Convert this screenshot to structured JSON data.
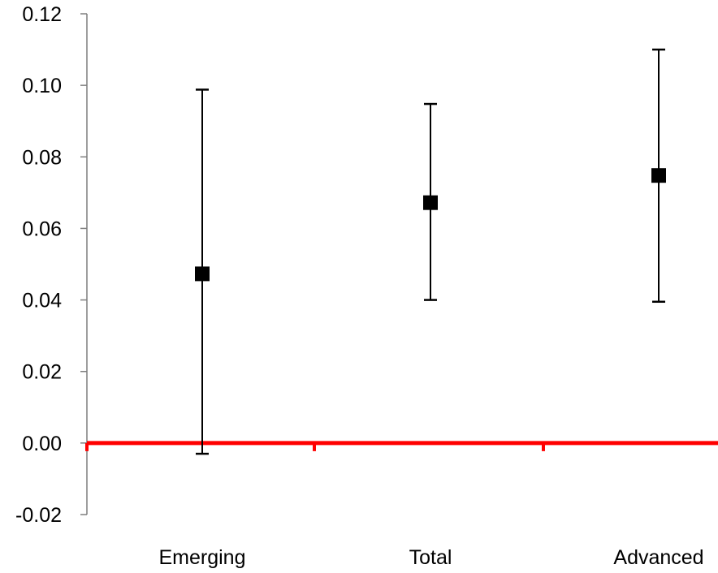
{
  "chart_data": {
    "type": "scatter",
    "title": "",
    "xlabel": "",
    "ylabel": "",
    "categories": [
      "Emerging",
      "Total",
      "Advanced"
    ],
    "ylim": [
      -0.02,
      0.12
    ],
    "yticks": [
      -0.02,
      0.0,
      0.02,
      0.04,
      0.06,
      0.08,
      0.1,
      0.12
    ],
    "ytick_labels": [
      "-0.02",
      "0.00",
      "0.02",
      "0.04",
      "0.06",
      "0.08",
      "0.10",
      "0.12"
    ],
    "series": [
      {
        "values": [
          0.0473,
          0.0672,
          0.0748
        ],
        "error_low": [
          -0.003,
          0.04,
          0.0395
        ],
        "error_high": [
          0.0988,
          0.0948,
          0.11
        ]
      }
    ],
    "reference_line": {
      "y": 0.0,
      "color": "#ff0000"
    },
    "grid": false,
    "legend": "none",
    "marker": "square",
    "marker_color": "#000000",
    "axis_color": "#7f7f7f"
  }
}
